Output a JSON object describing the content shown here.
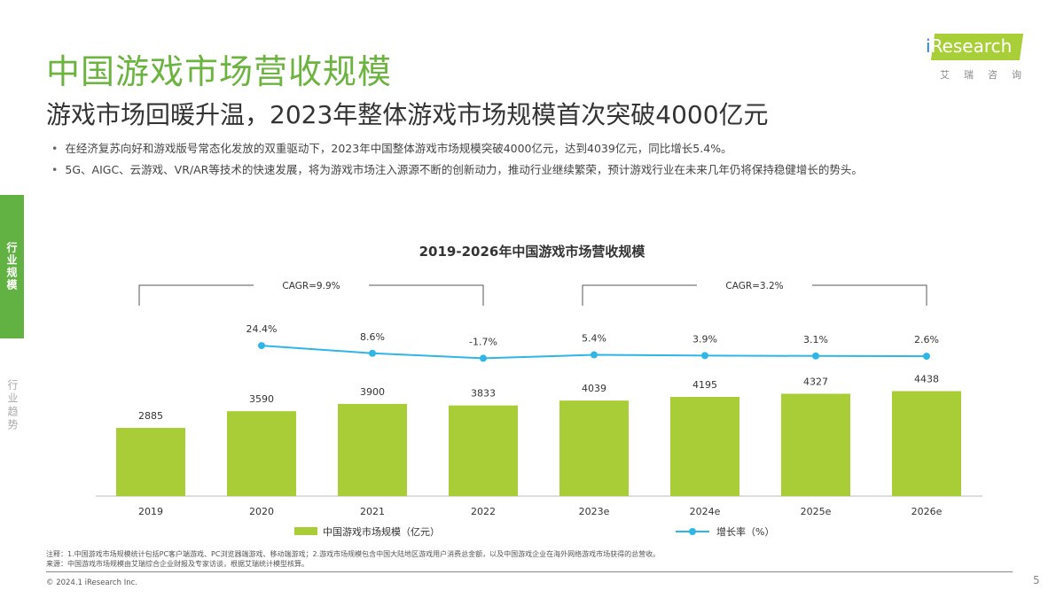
{
  "header": {
    "title": "中国游戏市场营收规模",
    "subtitle": "游戏市场回暖升温，2023年整体游戏市场规模首次突破4000亿元"
  },
  "bullets": [
    "在经济复苏向好和游戏版号常态化发放的双重驱动下，2023年中国整体游戏市场规模突破4000亿元，达到4039亿元，同比增长5.4%。",
    "5G、AIGC、云游戏、VR/AR等技术的快速发展，将为游戏市场注入源源不断的创新动力，推动行业继续繁荣，预计游戏行业在未来几年仍将保持稳健增长的势头。"
  ],
  "logo": {
    "text": "iResearch",
    "cn": "艾瑞咨询"
  },
  "sidebar": {
    "items": [
      {
        "label": "行业规模",
        "active": true
      },
      {
        "label": "行业趋势",
        "active": false
      }
    ]
  },
  "chart_data": {
    "type": "bar",
    "title": "2019-2026年中国游戏市场营收规模",
    "categories": [
      "2019",
      "2020",
      "2021",
      "2022",
      "2023e",
      "2024e",
      "2025e",
      "2026e"
    ],
    "series": [
      {
        "name": "中国游戏市场规模（亿元）",
        "type": "bar",
        "values": [
          2885,
          3590,
          3900,
          3833,
          4039,
          4195,
          4327,
          4438
        ],
        "labels": [
          "2885",
          "3590",
          "3900",
          "3833",
          "4039",
          "4195",
          "4327",
          "4438"
        ],
        "color": "#a8cd37"
      },
      {
        "name": "增长率（%）",
        "type": "line",
        "values": [
          null,
          24.4,
          8.6,
          -1.7,
          5.4,
          3.9,
          3.1,
          2.6
        ],
        "labels": [
          "",
          "24.4%",
          "8.6%",
          "-1.7%",
          "5.4%",
          "3.9%",
          "3.1%",
          "2.6%"
        ],
        "color": "#2fb5e6"
      }
    ],
    "annotations": [
      {
        "text": "CAGR=9.9%",
        "from": "2019",
        "to": "2022"
      },
      {
        "text": "CAGR=3.2%",
        "from": "2023e",
        "to": "2026e"
      }
    ],
    "legend": "bottom"
  },
  "footer": {
    "note": "注释：1.中国游戏市场规模统计包括PC客户端游戏、PC浏览器端游戏、移动端游戏；2.游戏市场规模包含中国大陆地区游戏用户消费总金额，以及中国游戏企业在海外网络游戏市场获得的总营收。",
    "source": "来源：中国游戏市场规模由艾瑞综合企业财报及专家访谈，根据艾瑞统计模型核算。",
    "copyright": "© 2024.1 iResearch Inc.",
    "page": "5"
  }
}
